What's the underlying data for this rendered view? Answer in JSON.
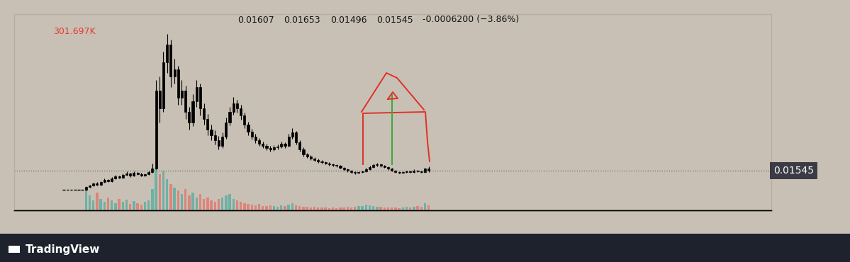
{
  "chart_data": {
    "type": "candlestick",
    "x": [
      0,
      1,
      2,
      3,
      4,
      5,
      6,
      7,
      8,
      9,
      10,
      11,
      12,
      13,
      14,
      15,
      16,
      17,
      18,
      19,
      20,
      21,
      22,
      23,
      24,
      25,
      26,
      27,
      28,
      29,
      30,
      31,
      32,
      33,
      34,
      35,
      36,
      37,
      38,
      39,
      40,
      41,
      42,
      43,
      44,
      45,
      46,
      47,
      48,
      49,
      50,
      51,
      52,
      53,
      54,
      55,
      56,
      57,
      58,
      59,
      60,
      61,
      62,
      63,
      64,
      65,
      66,
      67,
      68,
      69,
      70,
      71,
      72,
      73,
      74,
      75,
      76,
      77,
      78,
      79,
      80,
      81,
      82,
      83,
      84,
      85,
      86,
      87,
      88,
      89,
      90,
      91,
      92,
      93,
      94,
      95,
      96,
      97,
      98,
      99
    ],
    "open": [
      0.01,
      0.01,
      0.01,
      0.01,
      0.01,
      0.01,
      0.01,
      0.0108,
      0.0112,
      0.0118,
      0.0115,
      0.0122,
      0.0128,
      0.0125,
      0.0132,
      0.0138,
      0.0135,
      0.0142,
      0.0146,
      0.014,
      0.0148,
      0.0145,
      0.0141,
      0.0144,
      0.015,
      0.016,
      0.038,
      0.033,
      0.046,
      0.051,
      0.042,
      0.044,
      0.036,
      0.038,
      0.032,
      0.029,
      0.035,
      0.039,
      0.033,
      0.03,
      0.027,
      0.0255,
      0.024,
      0.0225,
      0.025,
      0.029,
      0.032,
      0.0345,
      0.033,
      0.031,
      0.0285,
      0.0265,
      0.025,
      0.024,
      0.023,
      0.0225,
      0.0218,
      0.0215,
      0.022,
      0.0222,
      0.023,
      0.0225,
      0.025,
      0.0262,
      0.0235,
      0.0215,
      0.02,
      0.0195,
      0.0188,
      0.0185,
      0.018,
      0.0178,
      0.0175,
      0.0172,
      0.017,
      0.0168,
      0.0162,
      0.0158,
      0.0154,
      0.015,
      0.0148,
      0.015,
      0.0152,
      0.0158,
      0.0165,
      0.017,
      0.0172,
      0.0168,
      0.0165,
      0.016,
      0.0155,
      0.015,
      0.0148,
      0.015,
      0.0152,
      0.0151,
      0.0155,
      0.0153,
      0.015,
      0.01607
    ],
    "high": [
      0.01,
      0.01,
      0.01,
      0.01,
      0.01,
      0.01,
      0.011,
      0.0115,
      0.0121,
      0.0122,
      0.0125,
      0.0132,
      0.0131,
      0.0136,
      0.0142,
      0.0141,
      0.0146,
      0.0152,
      0.0149,
      0.0153,
      0.0151,
      0.0148,
      0.0147,
      0.0154,
      0.0175,
      0.041,
      0.042,
      0.049,
      0.054,
      0.0525,
      0.047,
      0.045,
      0.041,
      0.0395,
      0.0335,
      0.037,
      0.041,
      0.04,
      0.0345,
      0.0315,
      0.0285,
      0.0268,
      0.0252,
      0.0262,
      0.0305,
      0.0335,
      0.0362,
      0.0355,
      0.034,
      0.0318,
      0.0292,
      0.0272,
      0.0258,
      0.0246,
      0.0236,
      0.023,
      0.0224,
      0.0226,
      0.0228,
      0.0236,
      0.0234,
      0.0258,
      0.0275,
      0.0266,
      0.024,
      0.022,
      0.0205,
      0.0199,
      0.0192,
      0.0189,
      0.0184,
      0.0181,
      0.0178,
      0.0175,
      0.0173,
      0.017,
      0.0165,
      0.0161,
      0.0157,
      0.0153,
      0.0153,
      0.0155,
      0.0162,
      0.0169,
      0.0174,
      0.0176,
      0.0175,
      0.0171,
      0.0167,
      0.0162,
      0.0157,
      0.0152,
      0.0152,
      0.0154,
      0.0154,
      0.0158,
      0.0157,
      0.0155,
      0.0163,
      0.01653
    ],
    "low": [
      0.01,
      0.01,
      0.01,
      0.01,
      0.01,
      0.01,
      0.0099,
      0.0106,
      0.011,
      0.0113,
      0.0113,
      0.012,
      0.0122,
      0.0123,
      0.013,
      0.0132,
      0.0133,
      0.014,
      0.0137,
      0.0138,
      0.0142,
      0.0138,
      0.0139,
      0.0142,
      0.0148,
      0.0158,
      0.029,
      0.032,
      0.043,
      0.039,
      0.04,
      0.034,
      0.034,
      0.03,
      0.027,
      0.028,
      0.0335,
      0.031,
      0.0285,
      0.0255,
      0.024,
      0.0228,
      0.0215,
      0.0218,
      0.0245,
      0.0282,
      0.0312,
      0.0318,
      0.0298,
      0.0275,
      0.0255,
      0.0242,
      0.0232,
      0.0224,
      0.0218,
      0.0212,
      0.0209,
      0.021,
      0.0214,
      0.0218,
      0.0219,
      0.0222,
      0.0244,
      0.0228,
      0.0208,
      0.0194,
      0.019,
      0.0184,
      0.0181,
      0.0176,
      0.0174,
      0.0172,
      0.0169,
      0.0167,
      0.0165,
      0.016,
      0.0155,
      0.0151,
      0.0147,
      0.0145,
      0.0146,
      0.0148,
      0.015,
      0.0156,
      0.0163,
      0.0167,
      0.0165,
      0.0162,
      0.0157,
      0.0152,
      0.0148,
      0.0146,
      0.0146,
      0.0148,
      0.0149,
      0.0149,
      0.0151,
      0.0148,
      0.0149,
      0.01496
    ],
    "close": [
      0.01,
      0.01,
      0.01,
      0.01,
      0.01,
      0.01,
      0.0108,
      0.0112,
      0.0118,
      0.0115,
      0.0122,
      0.0128,
      0.0125,
      0.0132,
      0.0138,
      0.0135,
      0.0142,
      0.0146,
      0.014,
      0.0148,
      0.0145,
      0.0141,
      0.0144,
      0.015,
      0.016,
      0.038,
      0.033,
      0.046,
      0.051,
      0.042,
      0.044,
      0.036,
      0.038,
      0.032,
      0.029,
      0.035,
      0.039,
      0.033,
      0.03,
      0.027,
      0.0255,
      0.024,
      0.0225,
      0.025,
      0.029,
      0.032,
      0.0345,
      0.033,
      0.031,
      0.0285,
      0.0265,
      0.025,
      0.024,
      0.023,
      0.0225,
      0.0218,
      0.0215,
      0.022,
      0.0222,
      0.023,
      0.0225,
      0.025,
      0.0262,
      0.0235,
      0.0215,
      0.02,
      0.0195,
      0.0188,
      0.0185,
      0.018,
      0.0178,
      0.0175,
      0.0172,
      0.017,
      0.0168,
      0.0162,
      0.0158,
      0.0154,
      0.015,
      0.0148,
      0.015,
      0.0152,
      0.0158,
      0.0165,
      0.017,
      0.0172,
      0.0168,
      0.0165,
      0.016,
      0.0155,
      0.015,
      0.0148,
      0.015,
      0.0152,
      0.0151,
      0.0155,
      0.0153,
      0.015,
      0.01607,
      0.01545
    ],
    "volume": [
      20000,
      20000,
      20000,
      20000,
      20000,
      20000,
      1200000,
      900000,
      600000,
      1100000,
      700000,
      500000,
      800000,
      600000,
      450000,
      700000,
      500000,
      650000,
      400000,
      550000,
      450000,
      350000,
      500000,
      600000,
      1300000,
      2600000,
      2200000,
      2400000,
      1900000,
      1600000,
      1400000,
      1200000,
      1000000,
      1300000,
      900000,
      1100000,
      800000,
      1000000,
      700000,
      800000,
      600000,
      500000,
      700000,
      800000,
      900000,
      1000000,
      700000,
      600000,
      500000,
      450000,
      400000,
      350000,
      300000,
      380000,
      280000,
      250000,
      300000,
      260000,
      220000,
      300000,
      240000,
      350000,
      420000,
      300000,
      260000,
      220000,
      200000,
      180000,
      210000,
      170000,
      160000,
      190000,
      150000,
      170000,
      140000,
      160000,
      180000,
      200000,
      170000,
      220000,
      250000,
      280000,
      350000,
      300000,
      260000,
      230000,
      200000,
      180000,
      190000,
      170000,
      160000,
      150000,
      180000,
      200000,
      170000,
      230000,
      260000,
      200000,
      450000,
      301697
    ],
    "color": "#000000",
    "xlim": [
      -13.5,
      192
    ],
    "ylim": [
      0.0042,
      0.0597
    ],
    "y2lim": [
      0,
      12000000
    ],
    "tick_labels": false,
    "header": [
      "0.01607",
      "0.01653",
      "0.01496",
      "0.01545",
      "-0.0006200 (−3.86%)"
    ],
    "volume_label": "301.697K",
    "price_line": {
      "value": 0.01545,
      "label": "0.01545"
    },
    "footer": "TradingView"
  }
}
